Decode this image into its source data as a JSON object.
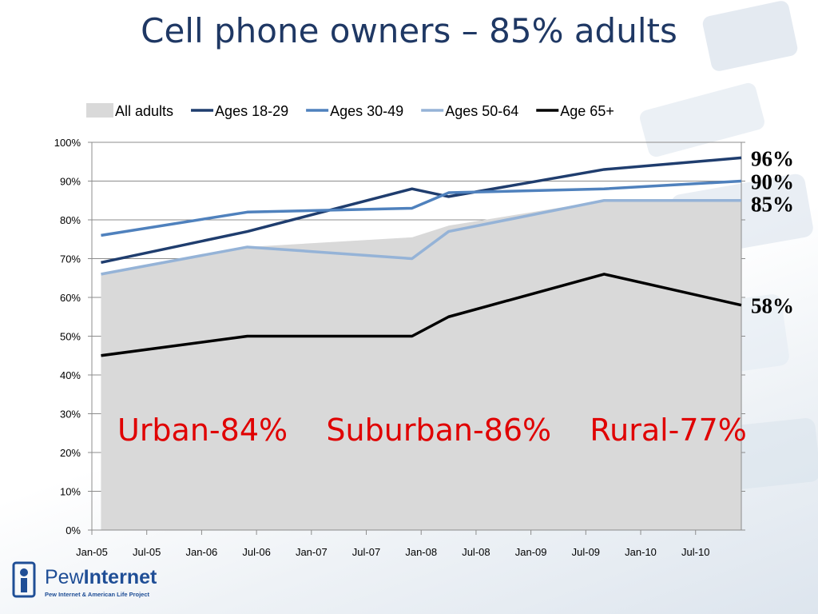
{
  "slide": {
    "title": "Cell phone owners – 85% adults",
    "annotations": "Urban-84%    Suburban-86%    Rural-77%"
  },
  "chart_data": {
    "type": "line",
    "title": "Cell phone owners – 85% adults",
    "xlabel": "",
    "ylabel": "",
    "x_ticks": [
      "Jan-05",
      "Jul-05",
      "Jan-06",
      "Jul-06",
      "Jan-07",
      "Jul-07",
      "Jan-08",
      "Jul-08",
      "Jan-09",
      "Jul-09",
      "Jan-10",
      "Jul-10"
    ],
    "y_ticks": [
      "0%",
      "10%",
      "20%",
      "30%",
      "40%",
      "50%",
      "60%",
      "70%",
      "80%",
      "90%",
      "100%"
    ],
    "ylim": [
      0,
      100
    ],
    "xlim": [
      "2005-01",
      "2010-12"
    ],
    "grid": true,
    "legend_position": "top",
    "series": [
      {
        "name": "All adults",
        "kind": "area",
        "color": "#d9d9d9",
        "points": [
          [
            "2005-02",
            66
          ],
          [
            "2006-06",
            73
          ],
          [
            "2007-12",
            75.5
          ],
          [
            "2008-04",
            78.5
          ],
          [
            "2009-09",
            85
          ],
          [
            "2010-12",
            85
          ]
        ]
      },
      {
        "name": "Ages 18-29",
        "kind": "line",
        "color": "#1f3d6e",
        "points": [
          [
            "2005-02",
            69
          ],
          [
            "2006-06",
            77
          ],
          [
            "2007-12",
            88
          ],
          [
            "2008-04",
            86
          ],
          [
            "2009-09",
            93
          ],
          [
            "2010-12",
            96
          ]
        ]
      },
      {
        "name": "Ages 30-49",
        "kind": "line",
        "color": "#4f81bd",
        "points": [
          [
            "2005-02",
            76
          ],
          [
            "2006-06",
            82
          ],
          [
            "2007-12",
            83
          ],
          [
            "2008-04",
            87
          ],
          [
            "2009-09",
            88
          ],
          [
            "2010-12",
            90
          ]
        ]
      },
      {
        "name": "Ages 50-64",
        "kind": "line",
        "color": "#95b3d7",
        "points": [
          [
            "2005-02",
            66
          ],
          [
            "2006-06",
            73
          ],
          [
            "2007-12",
            70
          ],
          [
            "2008-04",
            77
          ],
          [
            "2009-09",
            85
          ],
          [
            "2010-12",
            85
          ]
        ]
      },
      {
        "name": "Age 65+",
        "kind": "line",
        "color": "#000000",
        "points": [
          [
            "2005-02",
            45
          ],
          [
            "2006-06",
            50
          ],
          [
            "2007-12",
            50
          ],
          [
            "2008-04",
            55
          ],
          [
            "2009-09",
            66
          ],
          [
            "2010-12",
            58
          ]
        ]
      }
    ],
    "end_labels": [
      {
        "text": "96%",
        "value": 96
      },
      {
        "text": "90%",
        "value": 90
      },
      {
        "text": "85%",
        "value": 85
      },
      {
        "text": "58%",
        "value": 58
      }
    ]
  },
  "logo": {
    "name_light": "Pew",
    "name_bold": "Internet",
    "subtitle": "Pew Internet & American Life Project"
  }
}
